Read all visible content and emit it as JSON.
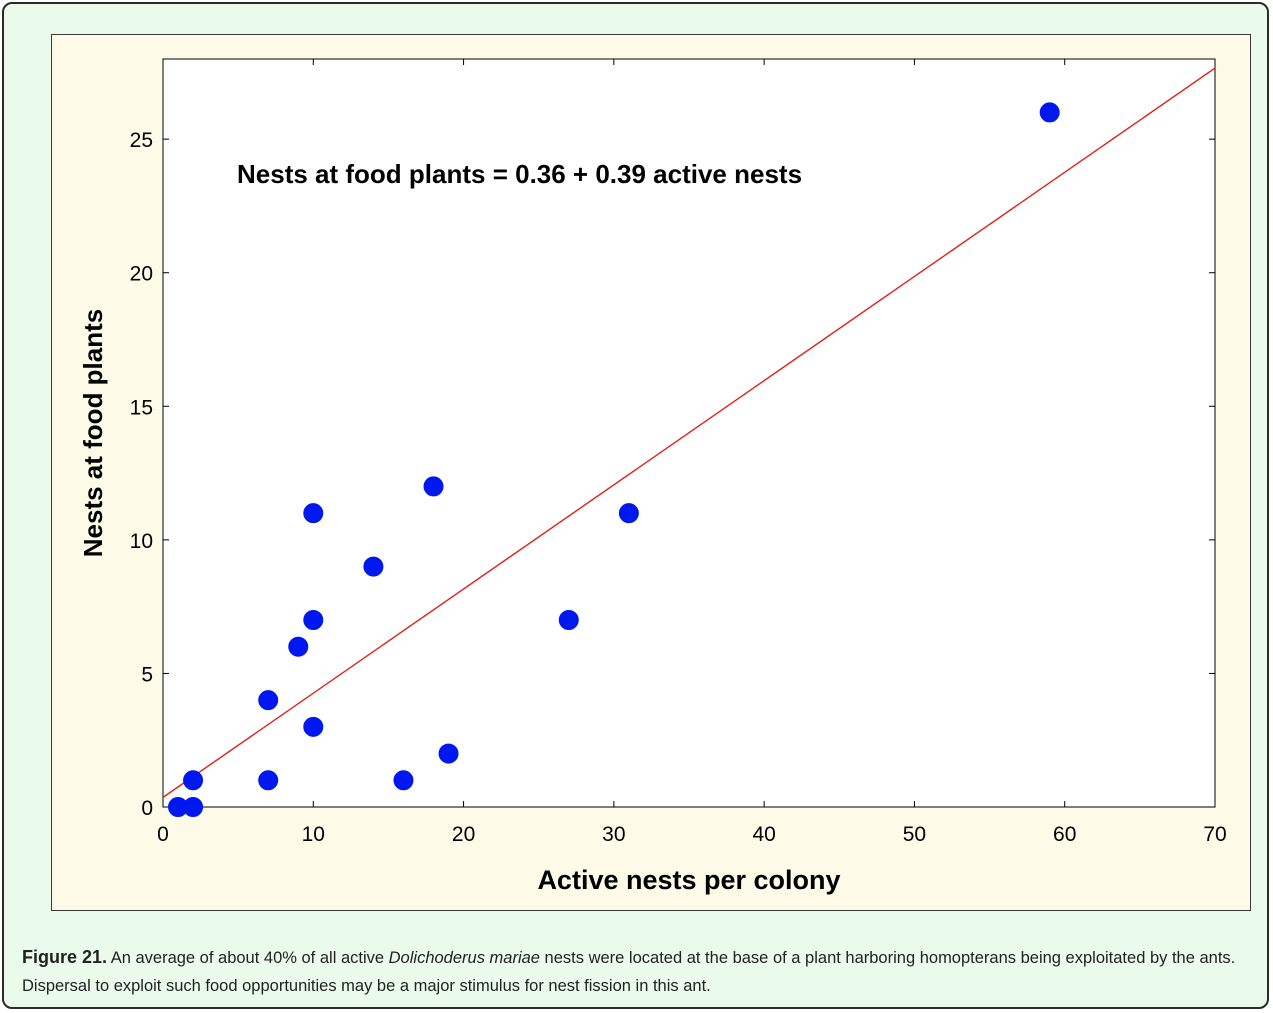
{
  "chart_data": {
    "type": "scatter",
    "xlabel": "Active nests per colony",
    "ylabel": "Nests at food plants",
    "xlim": [
      0,
      70
    ],
    "ylim": [
      0,
      28
    ],
    "x_ticks": [
      0,
      10,
      20,
      30,
      40,
      50,
      60,
      70
    ],
    "y_ticks": [
      0,
      5,
      10,
      15,
      20,
      25
    ],
    "annotation": "Nests at food plants = 0.36 + 0.39 active nests",
    "regression": {
      "intercept": 0.36,
      "slope": 0.39,
      "x_range": [
        0,
        70
      ]
    },
    "grid": false,
    "legend": "none",
    "colors": {
      "points": "#0018f0",
      "regression_line": "#e0201a"
    },
    "points": [
      {
        "x": 1,
        "y": 0
      },
      {
        "x": 2,
        "y": 0
      },
      {
        "x": 2,
        "y": 1
      },
      {
        "x": 7,
        "y": 1
      },
      {
        "x": 7,
        "y": 4
      },
      {
        "x": 9,
        "y": 6
      },
      {
        "x": 10,
        "y": 3
      },
      {
        "x": 10,
        "y": 7
      },
      {
        "x": 10,
        "y": 11
      },
      {
        "x": 14,
        "y": 9
      },
      {
        "x": 16,
        "y": 1
      },
      {
        "x": 18,
        "y": 12
      },
      {
        "x": 19,
        "y": 2
      },
      {
        "x": 27,
        "y": 7
      },
      {
        "x": 31,
        "y": 11
      },
      {
        "x": 59,
        "y": 26
      }
    ]
  },
  "caption": {
    "label": "Figure 21.",
    "text_before": " An average of about 40% of all active ",
    "species": "Dolichoderus mariae",
    "text_after": " nests were located at the base of a plant harboring homopterans being exploitated by the ants. Dispersal to exploit such food opportunities may be a major stimulus for nest fission in this ant."
  }
}
